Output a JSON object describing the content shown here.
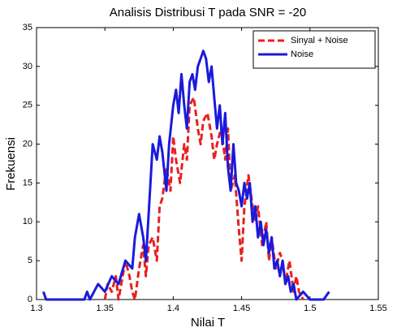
{
  "chart_data": {
    "type": "line",
    "title": "Analisis Distribusi T pada SNR = -20",
    "x_label": "Nilai T",
    "y_label": "Frekuensi",
    "xlim": [
      1.3,
      1.55
    ],
    "xticks": [
      1.3,
      1.35,
      1.4,
      1.45,
      1.5,
      1.55
    ],
    "ylim": [
      0,
      35
    ],
    "yticks": [
      0,
      5,
      10,
      15,
      20,
      25,
      30,
      35
    ],
    "legend": "upper-right",
    "series": [
      {
        "name": "Sinyal + Noise",
        "color": "#e8201e",
        "style": "dashed",
        "x": [
          1.35,
          1.352,
          1.355,
          1.358,
          1.36,
          1.362,
          1.365,
          1.368,
          1.37,
          1.372,
          1.375,
          1.378,
          1.38,
          1.382,
          1.385,
          1.388,
          1.39,
          1.392,
          1.395,
          1.398,
          1.4,
          1.402,
          1.405,
          1.408,
          1.41,
          1.412,
          1.415,
          1.418,
          1.42,
          1.422,
          1.425,
          1.428,
          1.43,
          1.432,
          1.435,
          1.438,
          1.44,
          1.442,
          1.445,
          1.448,
          1.45,
          1.452,
          1.455,
          1.458,
          1.46,
          1.462,
          1.465,
          1.468,
          1.47,
          1.472,
          1.475,
          1.478,
          1.48,
          1.482,
          1.485,
          1.488,
          1.49,
          1.492,
          1.495
        ],
        "values": [
          0,
          2,
          1,
          3,
          0,
          2,
          5,
          3,
          1,
          0,
          4,
          7,
          3,
          7,
          8,
          5,
          12,
          13,
          17,
          14,
          21,
          18,
          15,
          20,
          18,
          25,
          26,
          22,
          20,
          23,
          24,
          21,
          18,
          20,
          22,
          18,
          22,
          14,
          16,
          9,
          5,
          12,
          16,
          12,
          10,
          12,
          7,
          10,
          5,
          8,
          4,
          6,
          5,
          2,
          5,
          1,
          3,
          1,
          0
        ]
      },
      {
        "name": "Noise",
        "color": "#1a1adc",
        "style": "solid",
        "x": [
          1.305,
          1.307,
          1.335,
          1.337,
          1.339,
          1.345,
          1.35,
          1.355,
          1.36,
          1.365,
          1.37,
          1.372,
          1.375,
          1.378,
          1.38,
          1.382,
          1.385,
          1.388,
          1.39,
          1.392,
          1.395,
          1.397,
          1.4,
          1.402,
          1.404,
          1.406,
          1.408,
          1.41,
          1.412,
          1.414,
          1.416,
          1.418,
          1.42,
          1.422,
          1.424,
          1.426,
          1.428,
          1.43,
          1.432,
          1.434,
          1.436,
          1.438,
          1.44,
          1.442,
          1.444,
          1.446,
          1.448,
          1.45,
          1.452,
          1.454,
          1.456,
          1.458,
          1.46,
          1.462,
          1.464,
          1.466,
          1.468,
          1.47,
          1.472,
          1.474,
          1.476,
          1.478,
          1.48,
          1.482,
          1.484,
          1.486,
          1.488,
          1.49,
          1.495,
          1.5,
          1.505,
          1.51,
          1.514
        ],
        "values": [
          1,
          0,
          0,
          1,
          0,
          2,
          1,
          3,
          2,
          5,
          4,
          8,
          11,
          8,
          5,
          11,
          20,
          18,
          21,
          19,
          14,
          20,
          25,
          27,
          24,
          29,
          25,
          22,
          28,
          29,
          27,
          30,
          31,
          32,
          31,
          28,
          30,
          26,
          22,
          25,
          20,
          24,
          17,
          14,
          20,
          15,
          14,
          12,
          15,
          13,
          15,
          10,
          12,
          8,
          10,
          7,
          9,
          6,
          8,
          4,
          5,
          3,
          5,
          2,
          3,
          1,
          2,
          0,
          1,
          0,
          0,
          0,
          1
        ]
      }
    ]
  }
}
